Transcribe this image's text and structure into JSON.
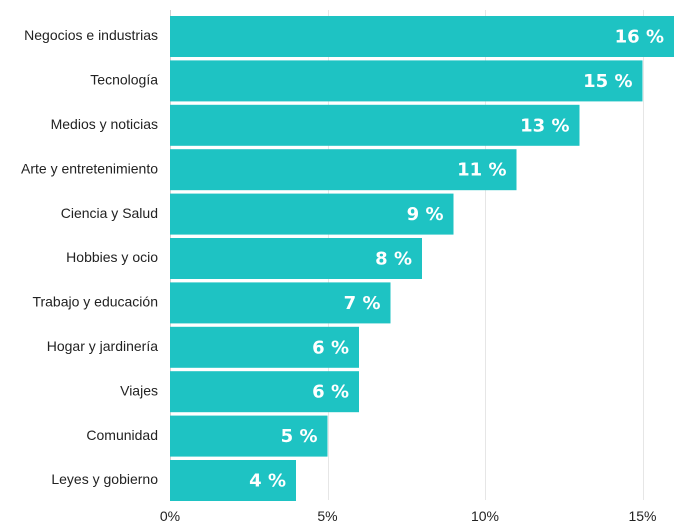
{
  "chart_data": {
    "type": "bar",
    "orientation": "horizontal",
    "categories": [
      "Negocios e industrias",
      "Tecnología",
      "Medios y noticias",
      "Arte y entretenimiento",
      "Ciencia y Salud",
      "Hobbies y ocio",
      "Trabajo y educación",
      "Hogar y jardinería",
      "Viajes",
      "Comunidad",
      "Leyes y gobierno"
    ],
    "values": [
      16,
      15,
      13,
      11,
      9,
      8,
      7,
      6,
      6,
      5,
      4
    ],
    "value_labels": [
      "16 %",
      "15 %",
      "13 %",
      "11 %",
      "9 %",
      "8 %",
      "7 %",
      "6 %",
      "6 %",
      "5 %",
      "4 %"
    ],
    "xlim": [
      0,
      16
    ],
    "xticks": [
      0,
      5,
      10,
      15
    ],
    "xtick_labels": [
      "0%",
      "5%",
      "10%",
      "15%"
    ],
    "grid": "vertical",
    "bar_color": "#1ec3c3",
    "value_label_color": "#ffffff"
  }
}
